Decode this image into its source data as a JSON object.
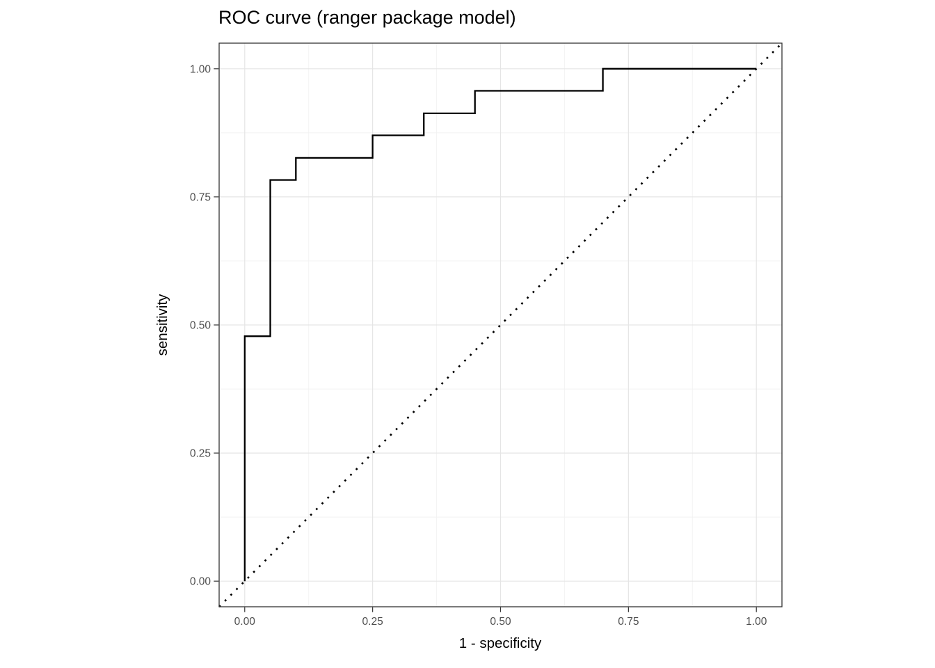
{
  "chart_data": {
    "type": "line",
    "title": "ROC curve (ranger package model)",
    "xlabel": "1 - specificity",
    "ylabel": "sensitivity",
    "xlim": [
      -0.05,
      1.05
    ],
    "ylim": [
      -0.05,
      1.05
    ],
    "grid": "major and minor, light gray on white",
    "legend": "none",
    "x_major_ticks": [
      0,
      0.25,
      0.5,
      0.75,
      1
    ],
    "x_tick_labels": [
      "0.00",
      "0.25",
      "0.50",
      "0.75",
      "1.00"
    ],
    "y_major_ticks": [
      0,
      0.25,
      0.5,
      0.75,
      1
    ],
    "y_tick_labels": [
      "0.00",
      "0.25",
      "0.50",
      "0.75",
      "1.00"
    ],
    "minor_gridlines": [
      0.125,
      0.375,
      0.625,
      0.875
    ],
    "series": [
      {
        "name": "ROC step curve",
        "style": "solid-step",
        "color": "#000000",
        "x": [
          0,
          0,
          0.05,
          0.05,
          0.1,
          0.1,
          0.25,
          0.25,
          0.35,
          0.35,
          0.45,
          0.45,
          0.7,
          0.7,
          1.0
        ],
        "y": [
          0,
          0.478,
          0.478,
          0.783,
          0.783,
          0.826,
          0.826,
          0.87,
          0.87,
          0.913,
          0.913,
          0.957,
          0.957,
          1.0,
          1.0
        ]
      },
      {
        "name": "chance diagonal",
        "style": "dotted",
        "color": "#000000",
        "x": [
          -0.05,
          1.05
        ],
        "y": [
          -0.05,
          1.05
        ]
      }
    ],
    "colors": {
      "grid_major": "#E5E5E5",
      "grid_minor": "#F2F2F2",
      "panel_border": "#333333",
      "tick_mark": "#333333",
      "tick_label": "#4D4D4D",
      "axis_title": "#000000",
      "title": "#000000",
      "background": "#FFFFFF"
    }
  }
}
